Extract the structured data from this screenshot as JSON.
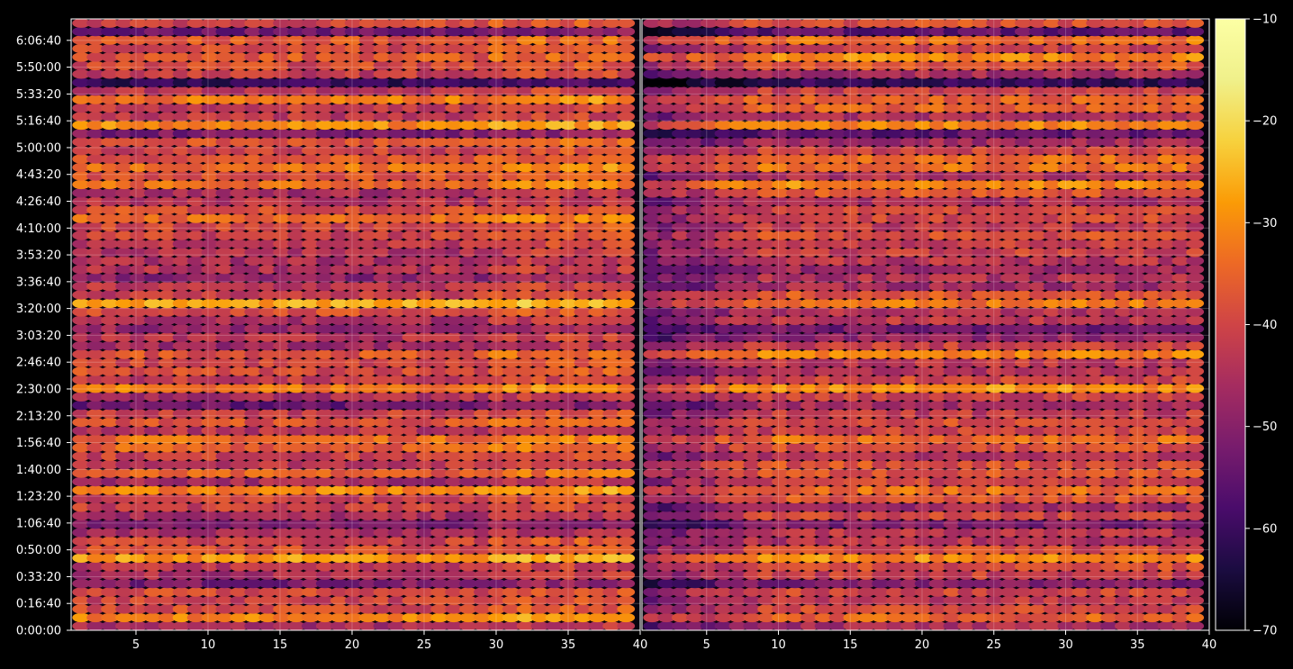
{
  "chart_data": {
    "type": "heatmap",
    "title": "",
    "xlabel": "",
    "ylabel": "",
    "colormap": "inferno",
    "background_color": "#000000",
    "grid": true,
    "panels": [
      {
        "name": "",
        "x_range": [
          1,
          40
        ],
        "x_ticks": [
          "5",
          "10",
          "15",
          "20",
          "25",
          "30",
          "35",
          "40"
        ],
        "x_tick_values": [
          5,
          10,
          15,
          20,
          25,
          30,
          35,
          40
        ]
      },
      {
        "name": "",
        "x_range": [
          1,
          40
        ],
        "x_ticks": [
          "5",
          "10",
          "15",
          "20",
          "25",
          "30",
          "35",
          "40"
        ],
        "x_tick_values": [
          5,
          10,
          15,
          20,
          25,
          30,
          35,
          40
        ]
      }
    ],
    "y_range_seconds": [
      0,
      22800
    ],
    "y_ticks": [
      "0:00:00",
      "0:16:40",
      "0:33:20",
      "0:50:00",
      "1:06:40",
      "1:23:20",
      "1:40:00",
      "1:56:40",
      "2:13:20",
      "2:30:00",
      "2:46:40",
      "3:03:20",
      "3:20:00",
      "3:36:40",
      "3:53:20",
      "4:10:00",
      "4:26:40",
      "4:43:20",
      "5:00:00",
      "5:16:40",
      "5:33:20",
      "5:50:00",
      "6:06:40"
    ],
    "y_tick_values_seconds": [
      0,
      1000,
      2000,
      3000,
      4000,
      5000,
      6000,
      7000,
      8000,
      9000,
      10000,
      11000,
      12000,
      13000,
      14000,
      15000,
      16000,
      17000,
      18000,
      19000,
      20000,
      21000,
      22000
    ],
    "colorbar": {
      "range": [
        -70,
        -10
      ],
      "ticks": [
        "−10",
        "−20",
        "−30",
        "−40",
        "−50",
        "−60",
        "−70"
      ],
      "tick_values": [
        -10,
        -20,
        -30,
        -40,
        -50,
        -60,
        -70
      ]
    },
    "rows": 72,
    "columns": 39,
    "value_estimate": {
      "base": -42,
      "bright_band_centers_seconds": [
        400,
        2700,
        5100,
        6000,
        7000,
        9000,
        10200,
        12200,
        14500,
        15500,
        16700,
        17400,
        18900,
        19700,
        21300,
        21900
      ],
      "dark_band_centers_seconds": [
        1700,
        4000,
        8300,
        11100,
        13300,
        14300,
        18500,
        20400,
        22300
      ],
      "second_panel_left_darkening_columns": 8
    }
  }
}
